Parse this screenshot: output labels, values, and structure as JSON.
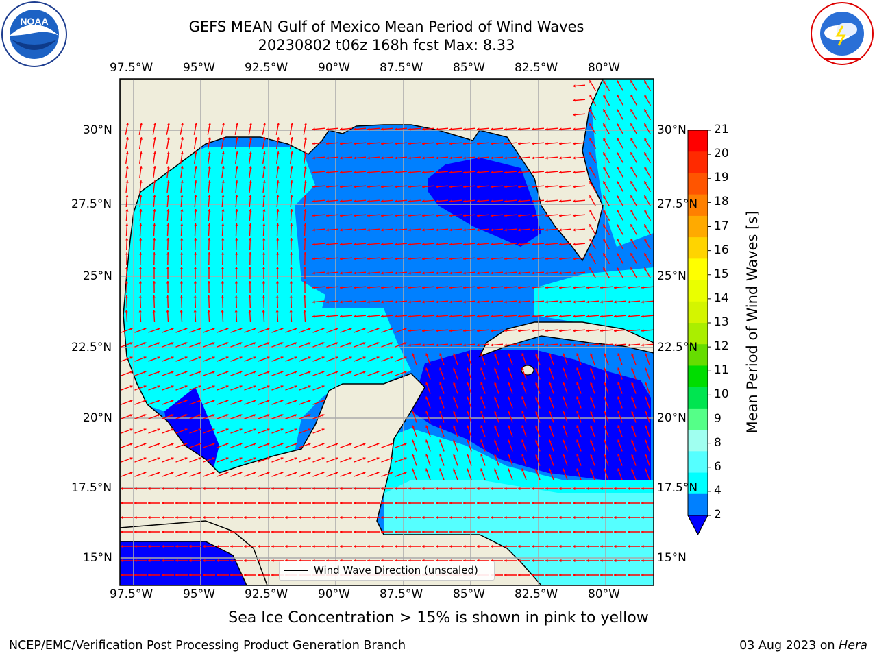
{
  "header": {
    "title_line1": "GEFS MEAN Gulf of Mexico Mean Period of Wind Waves",
    "title_line2": "20230802 t06z 168h fcst   Max: 8.33"
  },
  "logos": {
    "left": "NOAA",
    "left_ring_text": "NATIONAL OCEANIC AND ATMOSPHERIC ADMINISTRATION · U.S. DEPARTMENT OF COMMERCE",
    "right_ring_text": "NATIONAL WEATHER SERVICE"
  },
  "map": {
    "lon_labels": [
      "97.5°W",
      "95°W",
      "92.5°W",
      "90°W",
      "87.5°W",
      "85°W",
      "82.5°W",
      "80°W"
    ],
    "lat_labels": [
      "30°N",
      "27.5°N",
      "25°N",
      "22.5°N",
      "20°N",
      "17.5°N",
      "15°N"
    ],
    "land_color": "#efeddb",
    "legend_label": "Wind Wave Direction (unscaled)",
    "arrow_color": "#ff0000"
  },
  "colorbar": {
    "label": "Mean Period of Wind Waves [s]",
    "ticks": [
      "21",
      "20",
      "19",
      "18",
      "17",
      "16",
      "15",
      "14",
      "13",
      "12",
      "11",
      "10",
      "9",
      "8",
      "6",
      "4",
      "2"
    ],
    "colors": [
      "#ff0000",
      "#ff2a00",
      "#ff5500",
      "#ff8000",
      "#ffaa00",
      "#ffd400",
      "#ffff00",
      "#eaff00",
      "#d4f500",
      "#aaee00",
      "#66dd00",
      "#00dd00",
      "#00e550",
      "#55ff88",
      "#a0fff0",
      "#55ffff",
      "#00ffff",
      "#0080ff"
    ],
    "under_color": "#0000ff"
  },
  "notes": {
    "ice": "Sea Ice Concentration > 15% is shown in pink to yellow",
    "footer_left": "NCEP/EMC/Verification Post Processing Product Generation Branch",
    "footer_date": "03 Aug 2023 on ",
    "footer_host": "Hera"
  }
}
